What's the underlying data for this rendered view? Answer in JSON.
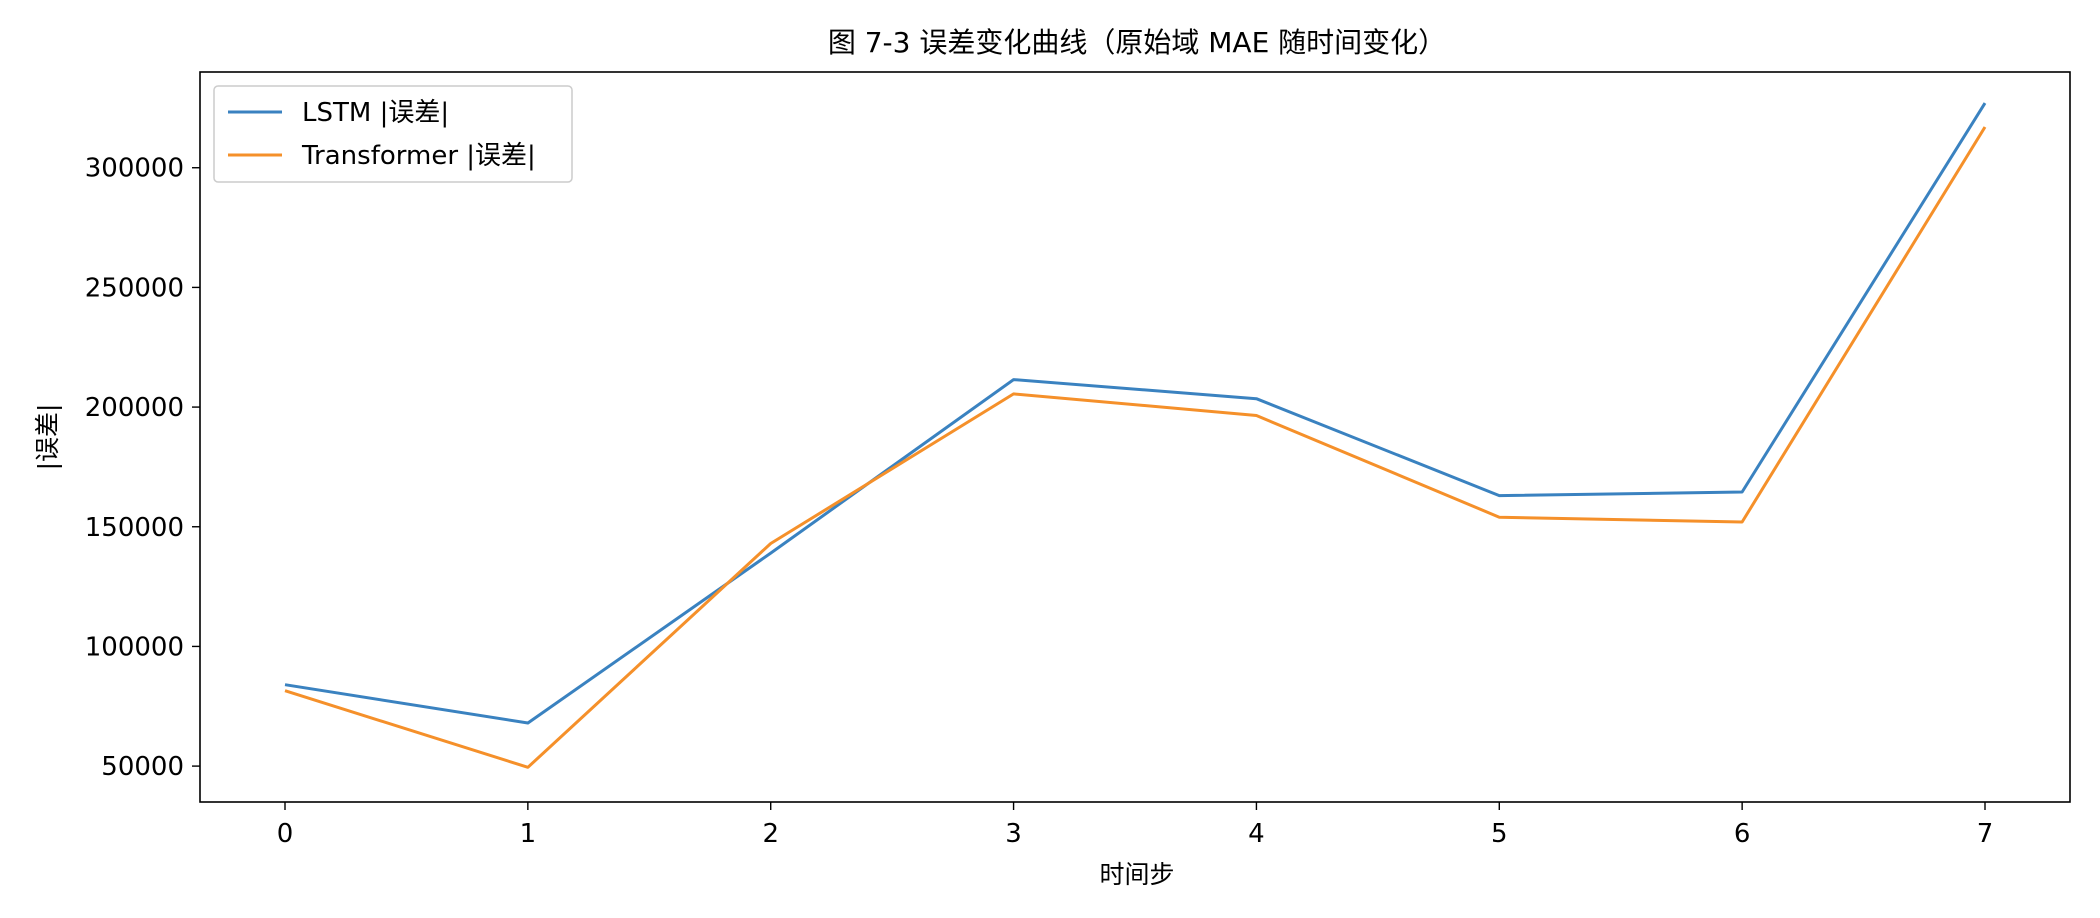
{
  "chart_data": {
    "type": "line",
    "title": "图 7-3 误差变化曲线（原始域 MAE 随时间变化）",
    "xlabel": "时间步",
    "ylabel": "|误差|",
    "x": [
      0,
      1,
      2,
      3,
      4,
      5,
      6,
      7
    ],
    "xlim": [
      -0.35,
      7.35
    ],
    "ylim": [
      35000,
      340000
    ],
    "yticks": [
      50000,
      100000,
      150000,
      200000,
      250000,
      300000
    ],
    "grid": false,
    "legend_position": "top-left",
    "series": [
      {
        "name": "LSTM |误差|",
        "color": "#3a82c0",
        "values": [
          84000,
          68000,
          139000,
          211500,
          203500,
          163000,
          164500,
          327000
        ]
      },
      {
        "name": "Transformer |误差|",
        "color": "#f5902a",
        "values": [
          81500,
          49500,
          143000,
          205500,
          196500,
          154000,
          152000,
          317000
        ]
      }
    ]
  }
}
